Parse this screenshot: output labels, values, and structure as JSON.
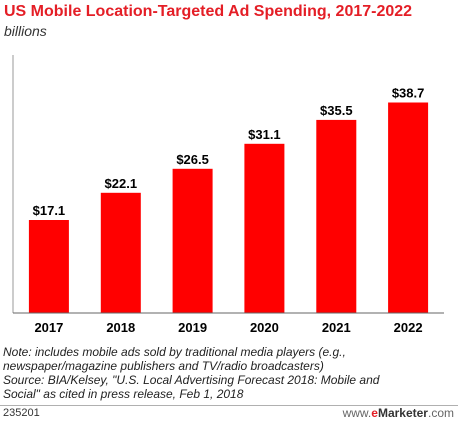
{
  "chart_data": {
    "type": "bar",
    "title": "US Mobile Location-Targeted Ad Spending, 2017-2022",
    "subtitle": "billions",
    "categories": [
      "2017",
      "2018",
      "2019",
      "2020",
      "2021",
      "2022"
    ],
    "values": [
      17.1,
      22.1,
      26.5,
      31.1,
      35.5,
      38.7
    ],
    "value_labels": [
      "$17.1",
      "$22.1",
      "$26.5",
      "$31.1",
      "$35.5",
      "$38.7"
    ],
    "xlabel": "",
    "ylabel": "",
    "ylim": [
      0,
      45
    ],
    "grid": false,
    "bar_color": "#ff0000"
  },
  "note": {
    "line1": "Note: includes mobile ads sold by traditional media players (e.g.,",
    "line2": "newspaper/magazine publishers and TV/radio broadcasters)",
    "line3": "Source: BIA/Kelsey, \"U.S. Local Advertising Forecast 2018: Mobile and",
    "line4": "Social\" as cited in press release, Feb 1, 2018"
  },
  "footer": {
    "chart_id": "235201",
    "brand_prefix": "www.",
    "brand_e": "e",
    "brand_main": "Marketer",
    "brand_suffix": ".com"
  }
}
